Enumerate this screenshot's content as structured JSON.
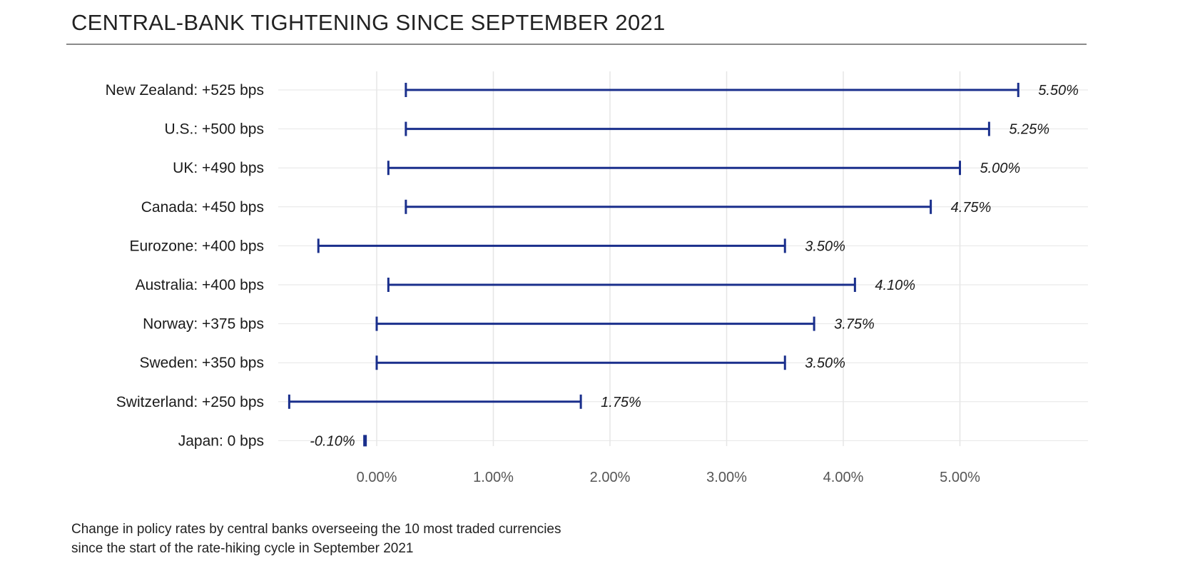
{
  "title": "CENTRAL-BANK TIGHTENING SINCE SEPTEMBER 2021",
  "caption_lines": [
    "Change in policy rates by central banks overseeing the 10 most traded currencies",
    "since the start of the rate-hiking cycle in September 2021"
  ],
  "colors": {
    "bar": "#1a2f8c",
    "grid": "#e6e6e6",
    "tick_text": "#555555",
    "rule": "#8a8a8a"
  },
  "chart_data": {
    "type": "dumbbell",
    "x_axis": {
      "ticks": [
        0,
        1,
        2,
        3,
        4,
        5
      ],
      "tick_labels": [
        "0.00%",
        "1.00%",
        "2.00%",
        "3.00%",
        "4.00%",
        "5.00%"
      ],
      "range": [
        -0.75,
        6.0
      ]
    },
    "grid": true,
    "rows": [
      {
        "label": "New Zealand: +525 bps",
        "start": 0.25,
        "end": 5.5,
        "end_label": "5.50%"
      },
      {
        "label": "U.S.: +500 bps",
        "start": 0.25,
        "end": 5.25,
        "end_label": "5.25%"
      },
      {
        "label": "UK: +490 bps",
        "start": 0.1,
        "end": 5.0,
        "end_label": "5.00%"
      },
      {
        "label": "Canada: +450 bps",
        "start": 0.25,
        "end": 4.75,
        "end_label": "4.75%"
      },
      {
        "label": "Eurozone: +400 bps",
        "start": -0.5,
        "end": 3.5,
        "end_label": "3.50%"
      },
      {
        "label": "Australia: +400 bps",
        "start": 0.1,
        "end": 4.1,
        "end_label": "4.10%"
      },
      {
        "label": "Norway: +375 bps",
        "start": 0.0,
        "end": 3.75,
        "end_label": "3.75%"
      },
      {
        "label": "Sweden: +350 bps",
        "start": 0.0,
        "end": 3.5,
        "end_label": "3.50%"
      },
      {
        "label": "Switzerland: +250 bps",
        "start": -0.75,
        "end": 1.75,
        "end_label": "1.75%"
      },
      {
        "label": "Japan: 0 bps",
        "start": -0.1,
        "end": -0.1,
        "end_label": "-0.10%"
      }
    ]
  }
}
